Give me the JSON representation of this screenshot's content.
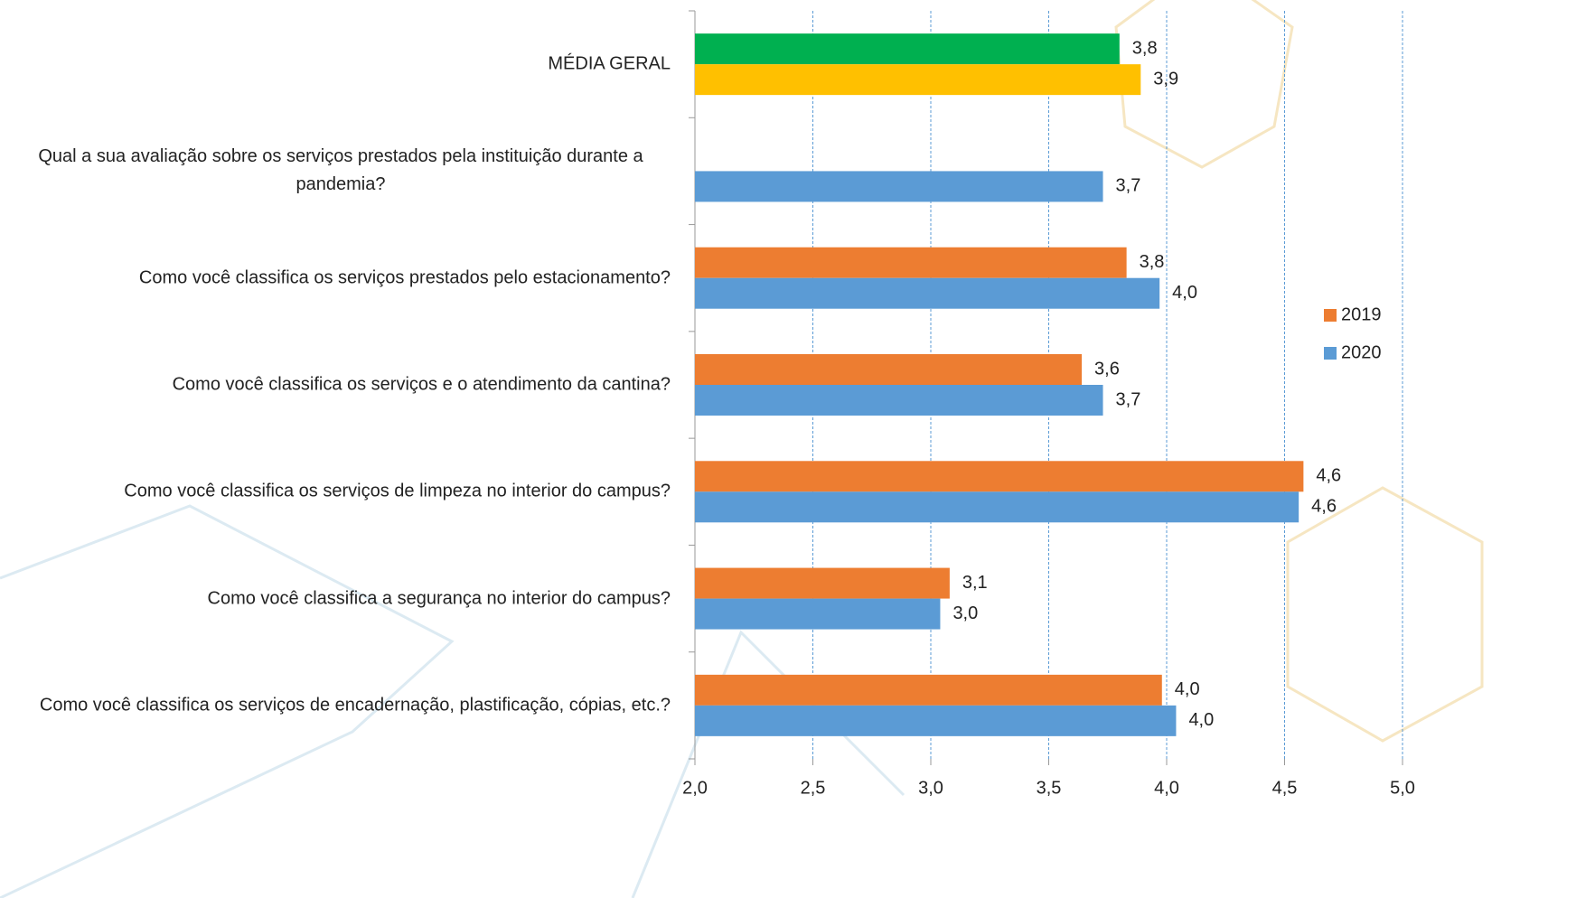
{
  "chart_data": {
    "type": "hbar",
    "categories": [
      "MÉDIA GERAL",
      "Qual a sua avaliação sobre os serviços prestados pela instituição durante a pandemia?",
      "Como você classifica os serviços prestados pelo estacionamento?",
      "Como você classifica os serviços e o atendimento da cantina?",
      "Como você classifica os serviços de limpeza no interior do campus?",
      "Como você classifica a segurança no interior do campus?",
      "Como você classifica os serviços de encadernação, plastificação, cópias, etc.?"
    ],
    "series": [
      {
        "name": "2019",
        "color": "#ed7d31",
        "colors": [
          "#00b050",
          "#ed7d31",
          "#ed7d31",
          "#ed7d31",
          "#ed7d31",
          "#ed7d31",
          "#ed7d31"
        ],
        "values": [
          3.8,
          null,
          3.83,
          3.64,
          4.58,
          3.08,
          3.98
        ],
        "value_labels": [
          "3,8",
          null,
          "3,8",
          "3,6",
          "4,6",
          "3,1",
          "4,0"
        ]
      },
      {
        "name": "2020",
        "color": "#5b9bd5",
        "colors": [
          "#ffc000",
          "#5b9bd5",
          "#5b9bd5",
          "#5b9bd5",
          "#5b9bd5",
          "#5b9bd5",
          "#5b9bd5"
        ],
        "values": [
          3.89,
          3.73,
          3.97,
          3.73,
          4.56,
          3.04,
          4.04
        ],
        "value_labels": [
          "3,9",
          "3,7",
          "4,0",
          "3,7",
          "4,6",
          "3,0",
          "4,0"
        ]
      }
    ],
    "xlim": [
      2.0,
      5.0
    ],
    "xticks": [
      {
        "value": 2.0,
        "label": "2,0"
      },
      {
        "value": 2.5,
        "label": "2,5"
      },
      {
        "value": 3.0,
        "label": "3,0"
      },
      {
        "value": 3.5,
        "label": "3,5"
      },
      {
        "value": 4.0,
        "label": "4,0"
      },
      {
        "value": 4.5,
        "label": "4,5"
      },
      {
        "value": 5.0,
        "label": "5,0"
      }
    ],
    "grid": true,
    "legend": "right"
  }
}
